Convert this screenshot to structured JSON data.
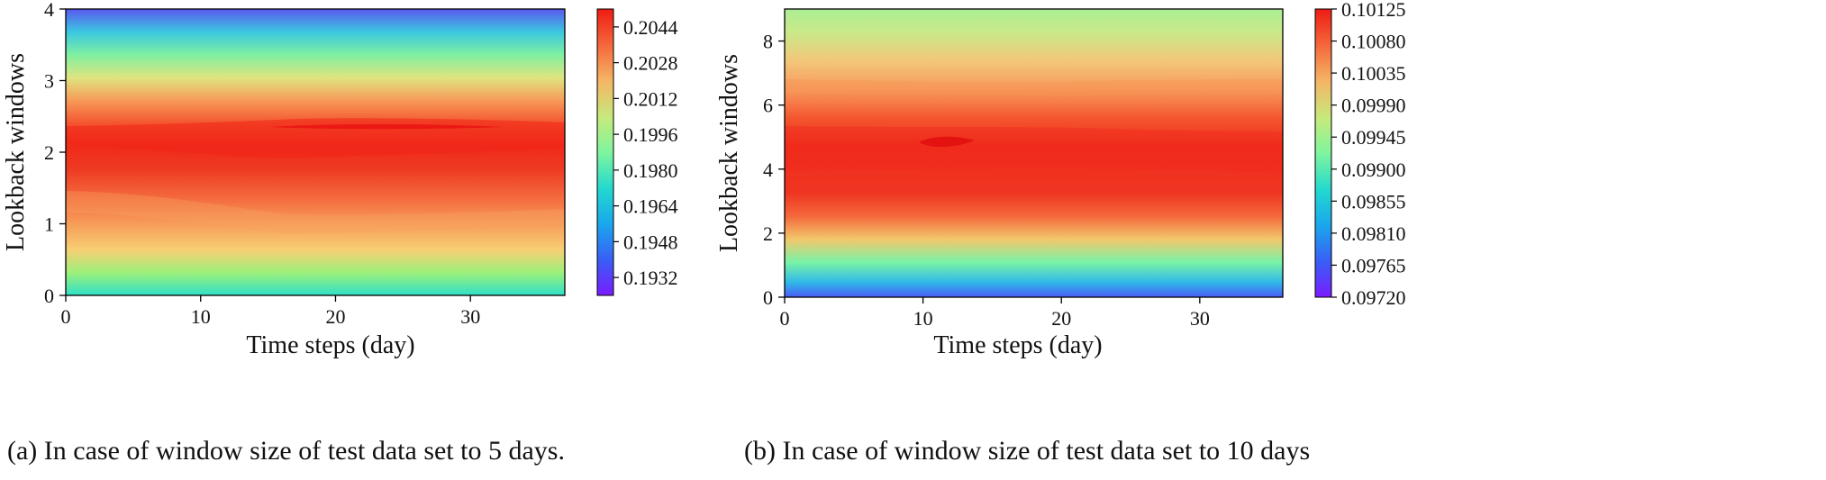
{
  "chart_data": [
    {
      "type": "heatmap",
      "subtype": "filled-contour",
      "caption": "(a) In case of window size of test data set to 5 days.",
      "xlabel": "Time steps (day)",
      "ylabel": "Lookback windows",
      "xlim": [
        0,
        37
      ],
      "ylim": [
        0,
        4
      ],
      "xticks": [
        "0",
        "10",
        "20",
        "30"
      ],
      "yticks": [
        "0",
        "1",
        "2",
        "3",
        "4"
      ],
      "colormap": "rainbow",
      "colorbar": {
        "min": 0.1924,
        "max": 0.2052,
        "ticks": [
          "0.1932",
          "0.1948",
          "0.1964",
          "0.1980",
          "0.1996",
          "0.2012",
          "0.2028",
          "0.2044"
        ]
      },
      "description_values": {
        "y": [
          0,
          0.5,
          1,
          1.5,
          2,
          2.5,
          3,
          3.5,
          4
        ],
        "approx_value_by_y": [
          0.1982,
          0.1996,
          0.2028,
          0.204,
          0.2048,
          0.2036,
          0.2018,
          0.199,
          0.1935
        ]
      }
    },
    {
      "type": "heatmap",
      "subtype": "filled-contour",
      "caption": "(b) In case of window size of test data set to 10 days",
      "xlabel": "Time steps (day)",
      "ylabel": "Lookback windows",
      "xlim": [
        0,
        36
      ],
      "ylim": [
        0,
        9
      ],
      "xticks": [
        "0",
        "10",
        "20",
        "30"
      ],
      "yticks": [
        "0",
        "2",
        "4",
        "6",
        "8"
      ],
      "colormap": "rainbow",
      "colorbar": {
        "min": 0.0972,
        "max": 0.10125,
        "ticks": [
          "0.09720",
          "0.09765",
          "0.09810",
          "0.09855",
          "0.09900",
          "0.09945",
          "0.09990",
          "0.10035",
          "0.10080",
          "0.10125"
        ]
      },
      "description_values": {
        "y": [
          0,
          1,
          2,
          3,
          4,
          5,
          6,
          7,
          8,
          9
        ],
        "approx_value_by_y": [
          0.0978,
          0.099,
          0.1004,
          0.101,
          0.1012,
          0.101,
          0.1006,
          0.1002,
          0.0998,
          0.0996
        ]
      }
    }
  ]
}
